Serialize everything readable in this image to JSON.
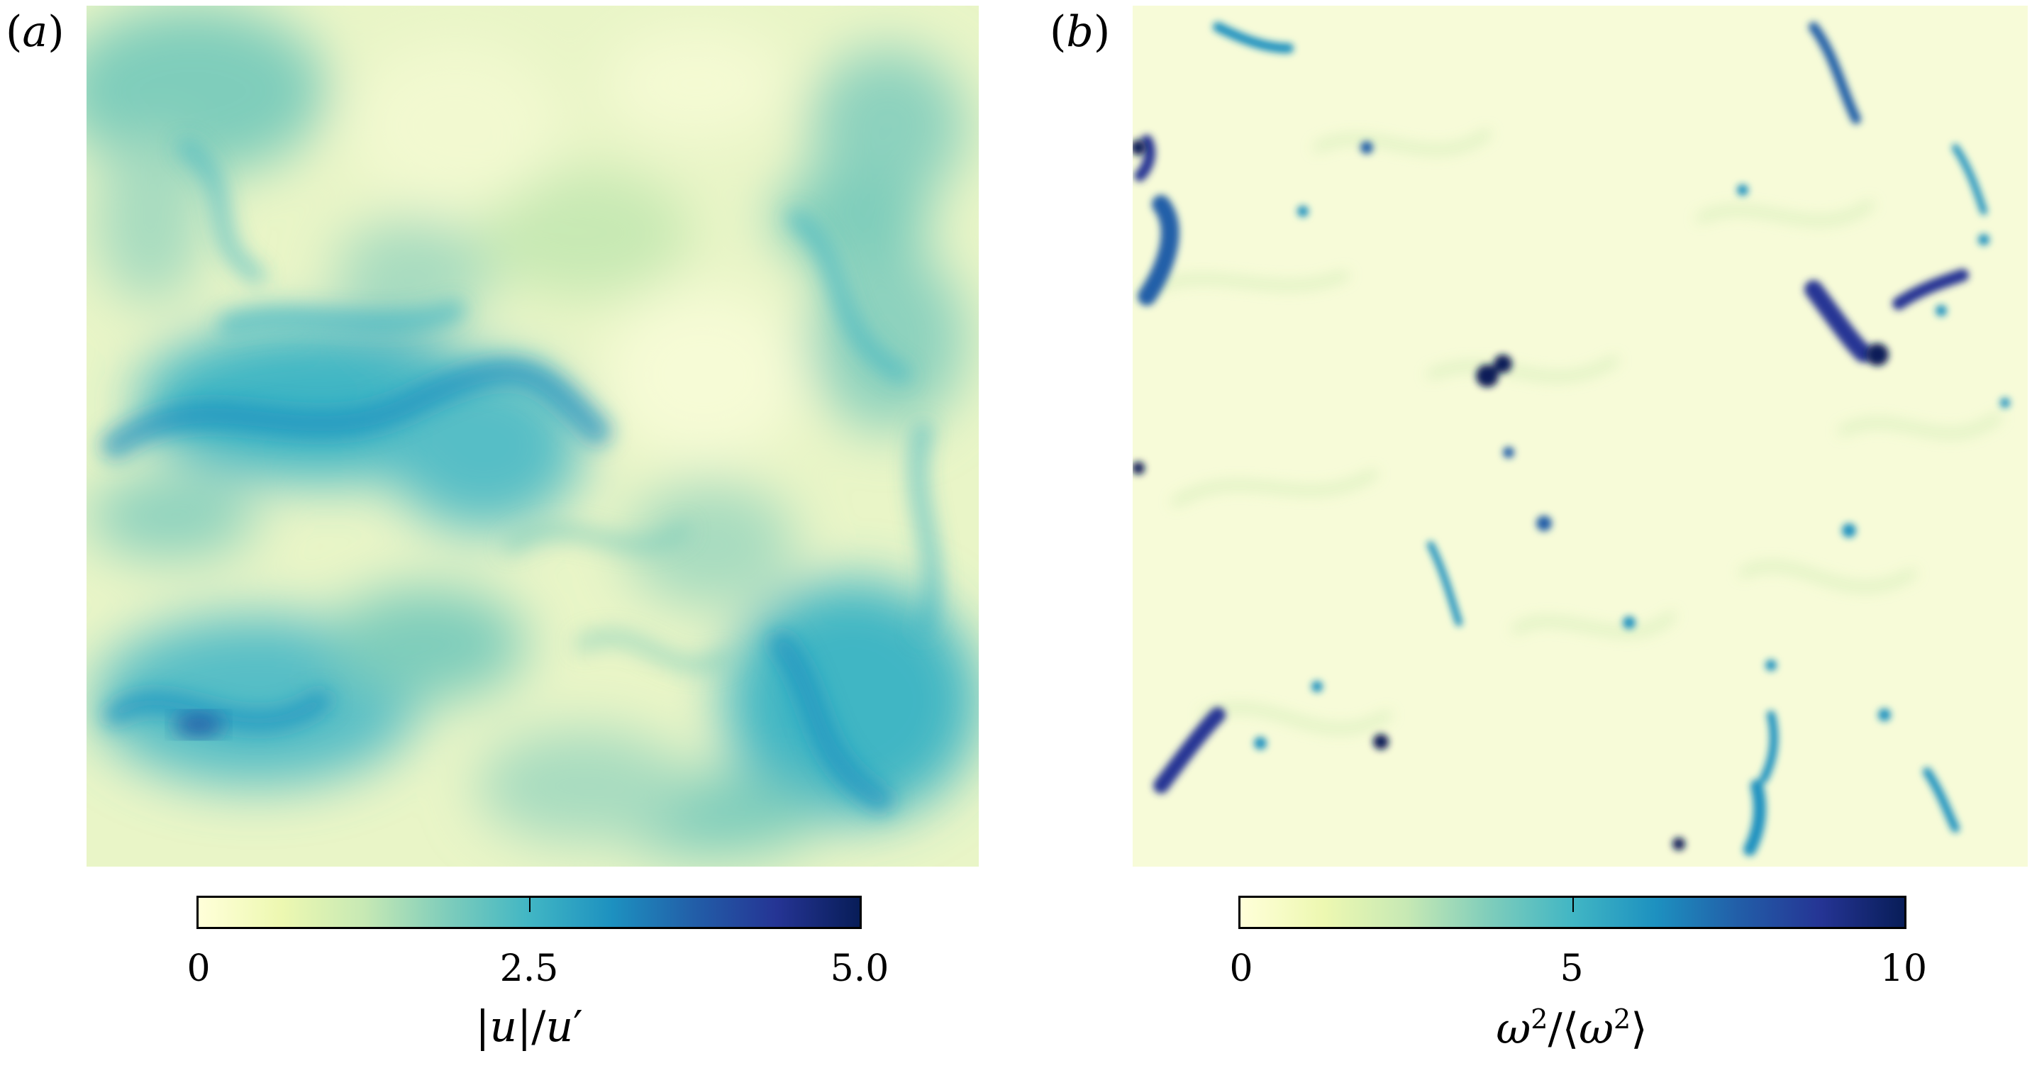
{
  "chart_data": [
    {
      "type": "heatmap",
      "panel_label": "(a)",
      "colorbar": {
        "title": "|u|/u′",
        "ticks": [
          "0",
          "2.5",
          "5.0"
        ],
        "range": [
          0,
          5.0
        ],
        "colors": [
          "#ffffd9",
          "#edf8b1",
          "#c7e9b4",
          "#7fcdbb",
          "#41b6c4",
          "#1d91c0",
          "#225ea8",
          "#253494",
          "#081d58"
        ]
      }
    },
    {
      "type": "heatmap",
      "panel_label": "(b)",
      "colorbar": {
        "title": "ω²/⟨ω²⟩",
        "ticks": [
          "0",
          "5",
          "10"
        ],
        "range": [
          0,
          10
        ],
        "colors": [
          "#ffffd9",
          "#edf8b1",
          "#c7e9b4",
          "#7fcdbb",
          "#41b6c4",
          "#1d91c0",
          "#225ea8",
          "#253494",
          "#081d58"
        ]
      }
    }
  ]
}
